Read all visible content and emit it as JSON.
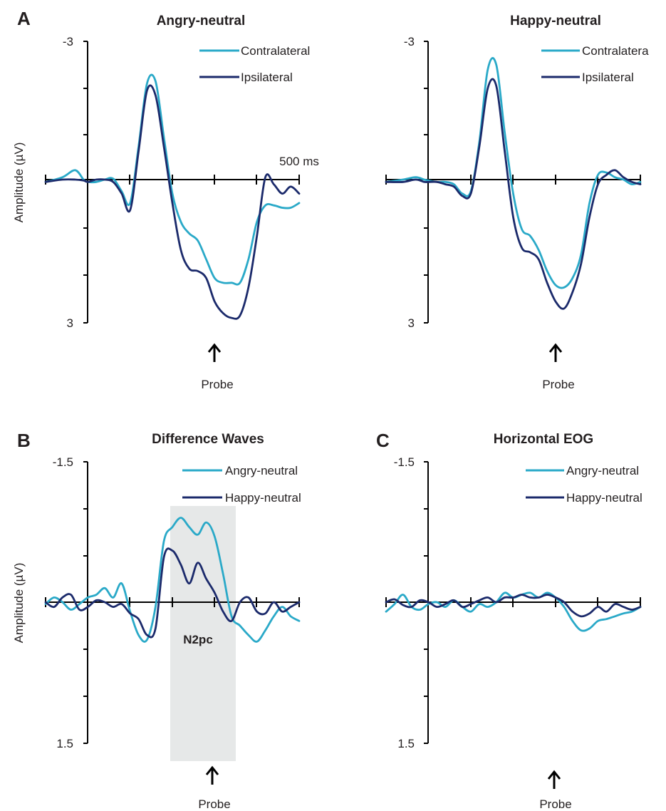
{
  "colors": {
    "light": "#2aa9c8",
    "dark": "#1b2a6b",
    "shade": "#e6e8e8",
    "axis": "#000000"
  },
  "y_axis_label": "Amplitude (µV)",
  "chart_data": [
    {
      "panel_letter": "A",
      "title": "Angry-neutral",
      "type": "line",
      "y_inverted": true,
      "ylim": [
        -3,
        3
      ],
      "yticks_labeled": [
        "-3",
        "3"
      ],
      "xlim": [
        -100,
        500
      ],
      "x_annotation": "500 ms",
      "probe_label": "Probe",
      "probe_x": 300,
      "legend": [
        "Contralateral",
        "Ipsilateral"
      ],
      "series": [
        {
          "name": "Contralateral",
          "color_key": "light",
          "x": [
            -100,
            -60,
            -30,
            -10,
            0,
            20,
            40,
            60,
            80,
            100,
            120,
            140,
            160,
            180,
            200,
            220,
            240,
            260,
            280,
            300,
            320,
            340,
            360,
            380,
            400,
            420,
            440,
            460,
            480,
            500
          ],
          "y": [
            0.05,
            -0.05,
            -0.2,
            0.0,
            0.05,
            0.05,
            0.0,
            -0.02,
            0.25,
            0.5,
            -0.7,
            -2.05,
            -2.1,
            -0.9,
            0.3,
            0.9,
            1.15,
            1.3,
            1.7,
            2.1,
            2.2,
            2.2,
            2.2,
            1.7,
            0.9,
            0.55,
            0.55,
            0.6,
            0.6,
            0.5
          ]
        },
        {
          "name": "Ipsilateral",
          "color_key": "dark",
          "x": [
            -100,
            -60,
            -30,
            -10,
            0,
            20,
            40,
            60,
            80,
            100,
            120,
            140,
            160,
            180,
            200,
            220,
            240,
            260,
            280,
            300,
            320,
            340,
            360,
            380,
            400,
            420,
            440,
            460,
            480,
            500
          ],
          "y": [
            0.05,
            0.0,
            0.0,
            0.02,
            0.05,
            0.0,
            0.0,
            0.05,
            0.3,
            0.65,
            -0.6,
            -1.9,
            -1.8,
            -0.7,
            0.5,
            1.5,
            1.9,
            1.95,
            2.1,
            2.6,
            2.85,
            2.95,
            2.9,
            2.3,
            1.2,
            -0.05,
            0.1,
            0.3,
            0.15,
            0.3
          ]
        }
      ]
    },
    {
      "panel_letter": "",
      "title": "Happy-neutral",
      "type": "line",
      "y_inverted": true,
      "ylim": [
        -3,
        3
      ],
      "yticks_labeled": [
        "-3",
        "3"
      ],
      "xlim": [
        -100,
        500
      ],
      "probe_label": "Probe",
      "probe_x": 300,
      "legend": [
        "Contralatera",
        "Ipsilateral"
      ],
      "series": [
        {
          "name": "Contralatera",
          "color_key": "light",
          "x": [
            -100,
            -60,
            -30,
            -10,
            0,
            20,
            40,
            60,
            80,
            100,
            120,
            140,
            160,
            180,
            200,
            220,
            240,
            260,
            280,
            300,
            320,
            340,
            360,
            380,
            400,
            420,
            440,
            460,
            480,
            500
          ],
          "y": [
            0.05,
            0.0,
            -0.05,
            0.0,
            0.02,
            0.05,
            0.05,
            0.1,
            0.3,
            0.25,
            -0.8,
            -2.35,
            -2.45,
            -1.0,
            0.3,
            1.05,
            1.2,
            1.5,
            1.95,
            2.25,
            2.3,
            2.1,
            1.6,
            0.5,
            -0.1,
            -0.15,
            -0.05,
            0.0,
            0.1,
            0.05
          ]
        },
        {
          "name": "Ipsilateral",
          "color_key": "dark",
          "x": [
            -100,
            -60,
            -30,
            -10,
            0,
            20,
            40,
            60,
            80,
            100,
            120,
            140,
            160,
            180,
            200,
            220,
            240,
            260,
            280,
            300,
            320,
            340,
            360,
            380,
            400,
            420,
            440,
            460,
            480,
            500
          ],
          "y": [
            0.05,
            0.05,
            0.0,
            0.05,
            0.05,
            0.05,
            0.1,
            0.15,
            0.35,
            0.3,
            -0.7,
            -1.95,
            -2.0,
            -0.6,
            0.8,
            1.45,
            1.55,
            1.7,
            2.2,
            2.6,
            2.75,
            2.4,
            1.8,
            0.8,
            0.1,
            -0.1,
            -0.2,
            -0.05,
            0.05,
            0.1
          ]
        }
      ]
    },
    {
      "panel_letter": "B",
      "title": "Difference Waves",
      "type": "line",
      "y_inverted": true,
      "ylim": [
        -1.5,
        1.5
      ],
      "yticks_labeled": [
        "-1.5",
        "1.5"
      ],
      "xlim": [
        -100,
        500
      ],
      "shaded_window": {
        "x": [
          180,
          280
        ],
        "label": "N2pc"
      },
      "probe_label": "Probe",
      "probe_x": 300,
      "legend": [
        "Angry-neutral",
        "Happy-neutral"
      ],
      "series": [
        {
          "name": "Angry-neutral",
          "color_key": "light",
          "x": [
            -100,
            -80,
            -60,
            -40,
            -20,
            0,
            20,
            40,
            60,
            80,
            100,
            120,
            140,
            160,
            180,
            200,
            220,
            240,
            260,
            280,
            300,
            320,
            340,
            360,
            380,
            400,
            420,
            440,
            460,
            480,
            500
          ],
          "y": [
            0.02,
            -0.05,
            0.0,
            0.08,
            0.02,
            -0.05,
            -0.08,
            -0.15,
            -0.05,
            -0.2,
            0.1,
            0.35,
            0.4,
            0.05,
            -0.65,
            -0.8,
            -0.9,
            -0.8,
            -0.72,
            -0.85,
            -0.7,
            -0.3,
            0.15,
            0.25,
            0.35,
            0.42,
            0.3,
            0.15,
            0.05,
            0.15,
            0.2
          ]
        },
        {
          "name": "Happy-neutral",
          "color_key": "dark",
          "x": [
            -100,
            -80,
            -60,
            -40,
            -20,
            0,
            20,
            40,
            60,
            80,
            100,
            120,
            140,
            160,
            180,
            200,
            220,
            240,
            260,
            280,
            300,
            320,
            340,
            360,
            380,
            400,
            420,
            440,
            460,
            480,
            500
          ],
          "y": [
            0.0,
            0.05,
            -0.05,
            -0.08,
            0.08,
            0.05,
            -0.02,
            0.0,
            0.05,
            0.02,
            0.12,
            0.18,
            0.35,
            0.28,
            -0.48,
            -0.55,
            -0.4,
            -0.2,
            -0.42,
            -0.25,
            -0.1,
            0.1,
            0.2,
            0.0,
            -0.05,
            0.1,
            0.12,
            0.0,
            0.1,
            0.05,
            0.0
          ]
        }
      ]
    },
    {
      "panel_letter": "C",
      "title": "Horizontal EOG",
      "type": "line",
      "y_inverted": true,
      "ylim": [
        -1.5,
        1.5
      ],
      "yticks_labeled": [
        "-1.5",
        "1.5"
      ],
      "xlim": [
        -100,
        500
      ],
      "probe_label": "Probe",
      "probe_x": 300,
      "legend": [
        "Angry-neutral",
        "Happy-neutral"
      ],
      "series": [
        {
          "name": "Angry-neutral",
          "color_key": "light",
          "x": [
            -100,
            -80,
            -60,
            -40,
            -20,
            0,
            20,
            40,
            60,
            80,
            100,
            120,
            140,
            160,
            180,
            200,
            220,
            240,
            260,
            280,
            300,
            320,
            340,
            360,
            380,
            400,
            420,
            440,
            460,
            480,
            500
          ],
          "y": [
            0.1,
            0.02,
            -0.08,
            0.05,
            0.08,
            0.02,
            0.0,
            0.05,
            -0.02,
            0.05,
            0.1,
            0.02,
            0.05,
            0.0,
            -0.1,
            -0.05,
            -0.08,
            -0.1,
            -0.05,
            -0.1,
            -0.05,
            0.05,
            0.2,
            0.3,
            0.28,
            0.2,
            0.18,
            0.15,
            0.12,
            0.1,
            0.05
          ]
        },
        {
          "name": "Happy-neutral",
          "color_key": "dark",
          "x": [
            -100,
            -80,
            -60,
            -40,
            -20,
            0,
            20,
            40,
            60,
            80,
            100,
            120,
            140,
            160,
            180,
            200,
            220,
            240,
            260,
            280,
            300,
            320,
            340,
            360,
            380,
            400,
            420,
            440,
            460,
            480,
            500
          ],
          "y": [
            0.0,
            -0.03,
            0.03,
            0.05,
            -0.02,
            0.0,
            0.05,
            0.02,
            -0.02,
            0.05,
            0.02,
            -0.02,
            -0.05,
            0.0,
            -0.05,
            -0.05,
            -0.08,
            -0.05,
            -0.05,
            -0.08,
            -0.05,
            0.0,
            0.1,
            0.15,
            0.12,
            0.05,
            0.1,
            0.02,
            0.05,
            0.08,
            0.05
          ]
        }
      ]
    }
  ]
}
